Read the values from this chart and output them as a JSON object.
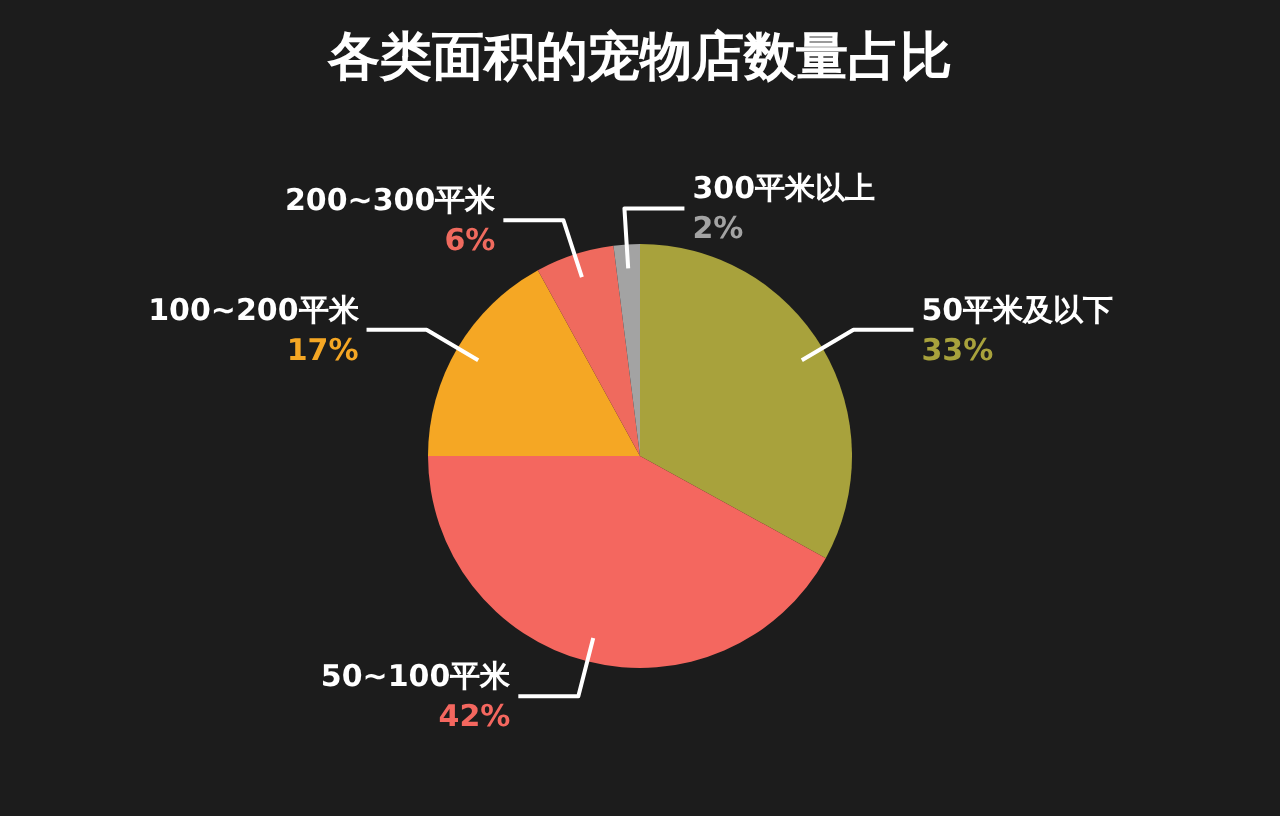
{
  "chart_data": {
    "type": "pie",
    "title": "各类面积的宠物店数量占比",
    "categories": [
      "50平米及以下",
      "50~100平米",
      "100~200平米",
      "200~300平米",
      "300平米以上"
    ],
    "values": [
      33,
      42,
      17,
      6,
      2
    ],
    "colors": [
      "#a8a23c",
      "#f4675f",
      "#f5a724",
      "#ef6a5e",
      "#a3a3a3"
    ],
    "value_labels": [
      "33%",
      "42%",
      "17%",
      "6%",
      "2%"
    ]
  }
}
